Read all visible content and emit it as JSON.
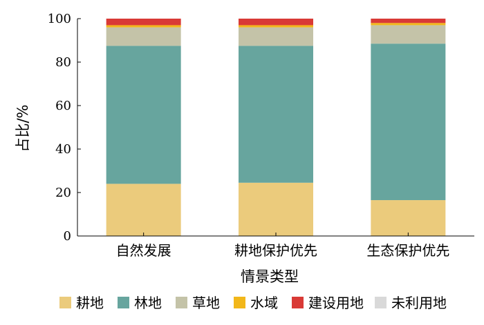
{
  "chart_data": {
    "type": "bar",
    "stacked": true,
    "title": "",
    "xlabel": "情景类型",
    "ylabel": "占比/%",
    "ylim": [
      0,
      100
    ],
    "yticks": [
      0,
      20,
      40,
      60,
      80,
      100
    ],
    "grid": false,
    "legend_position": "bottom",
    "categories": [
      "自然发展",
      "耕地保护优先",
      "生态保护优先"
    ],
    "series": [
      {
        "name": "耕地",
        "color": "#ebcb7c",
        "values": [
          24.0,
          24.5,
          16.5
        ]
      },
      {
        "name": "林地",
        "color": "#67a59e",
        "values": [
          63.5,
          63.0,
          72.0
        ]
      },
      {
        "name": "草地",
        "color": "#c4c3a8",
        "values": [
          8.5,
          8.5,
          8.5
        ]
      },
      {
        "name": "水域",
        "color": "#f2b71a",
        "values": [
          1.0,
          1.0,
          1.0
        ]
      },
      {
        "name": "建设用地",
        "color": "#d93a36",
        "values": [
          3.0,
          3.0,
          2.0
        ]
      },
      {
        "name": "未利用地",
        "color": "#d9d9d9",
        "values": [
          0.0,
          0.0,
          0.0
        ]
      }
    ]
  }
}
